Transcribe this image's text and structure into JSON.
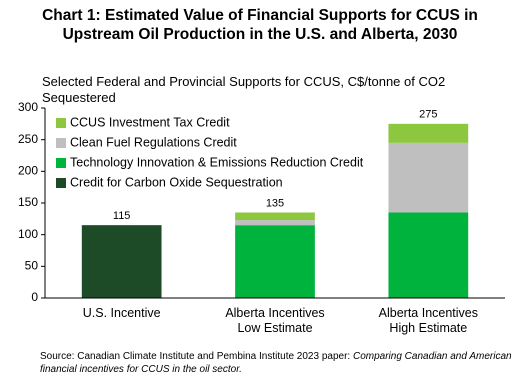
{
  "chart_data": {
    "type": "stacked_bar",
    "title": "Chart 1: Estimated Value of Financial  Supports for CCUS in Upstream Oil Production in the U.S. and Alberta, 2030",
    "subtitle": "Selected Federal and Provincial Supports for CCUS, C$/tonne of CO2 Sequestered",
    "categories": [
      "U.S. Incentive",
      "Alberta Incentives\nLow Estimate",
      "Alberta Incentives\nHigh Estimate"
    ],
    "series": [
      {
        "name": "Credit for Carbon Oxide Sequestration",
        "color": "#1d4a27",
        "values": [
          115,
          0,
          0
        ]
      },
      {
        "name": "Technology Innovation & Emissions Reduction Credit",
        "color": "#00b33c",
        "values": [
          0,
          115,
          135
        ]
      },
      {
        "name": "Clean Fuel Regulations Credit",
        "color": "#bfbfbf",
        "values": [
          0,
          8,
          110
        ]
      },
      {
        "name": "CCUS Investment Tax Credit",
        "color": "#8dc63f",
        "values": [
          0,
          12,
          30
        ]
      }
    ],
    "totals": [
      115,
      135,
      275
    ],
    "ylim": [
      0,
      300
    ],
    "yticks": [
      0,
      50,
      100,
      150,
      200,
      250,
      300
    ],
    "source": "Source: Canadian Climate Institute and Pembina Institute 2023 paper: ",
    "source_title": "Comparing Canadian and American financial incentives for CCUS in the oil sector."
  }
}
